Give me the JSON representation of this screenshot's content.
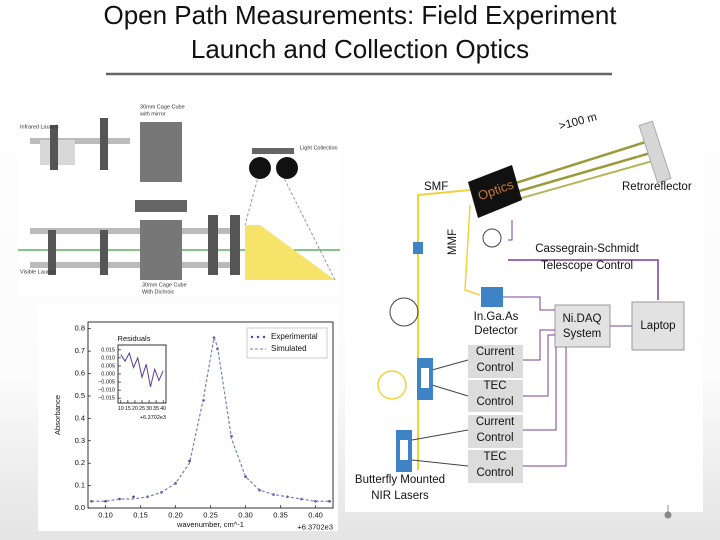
{
  "slide": {
    "title_lines": [
      "Open Path Measurements: Field Experiment",
      "Launch and Collection Optics"
    ]
  },
  "optics_drawing": {
    "labels": {
      "cage_mirror": [
        "30mm Cage Cube",
        "with mirror"
      ],
      "infrared_launch": "Infrared Launch",
      "light_collection": "Light Collection",
      "visible_launch": "Visible Launch",
      "cage_dichroic": [
        "30mm Cage Cube",
        "With Dichroic"
      ]
    }
  },
  "setup_diagram": {
    "distance": ">100 m",
    "optics": "Optics",
    "retroreflector": "Retroreflector",
    "smf": "SMF",
    "mmf": "MMF",
    "telescope_control": [
      "Cassegrain-Schmidt",
      "Telescope Control"
    ],
    "detector": [
      "In.Ga.As",
      "Detector"
    ],
    "daq": [
      "Ni.DAQ",
      "System"
    ],
    "laptop": "Laptop",
    "controls": [
      [
        "Current",
        "Control"
      ],
      [
        "TEC",
        "Control"
      ],
      [
        "Current",
        "Control"
      ],
      [
        "TEC",
        "Control"
      ]
    ],
    "lasers": [
      "Butterfly Mounted",
      "NIR Lasers"
    ]
  },
  "chart_data": [
    {
      "type": "line",
      "ylabel": "Absorbance",
      "xlabel": "wavenumber, cm^-1",
      "x_offset_label": "+6.3702e3",
      "x": [
        0.08,
        0.1,
        0.12,
        0.14,
        0.16,
        0.18,
        0.2,
        0.22,
        0.24,
        0.255,
        0.26,
        0.28,
        0.3,
        0.32,
        0.34,
        0.36,
        0.38,
        0.4,
        0.42
      ],
      "series": [
        {
          "name": "Experimental",
          "color": "#5b3a9e",
          "marker": "dot",
          "values": [
            0.03,
            0.03,
            0.04,
            0.05,
            0.05,
            0.07,
            0.11,
            0.21,
            0.48,
            0.76,
            0.71,
            0.32,
            0.14,
            0.08,
            0.06,
            0.05,
            0.04,
            0.03,
            0.03
          ]
        },
        {
          "name": "Simulated",
          "color": "#6f86b5",
          "linestyle": "dashed",
          "values": [
            0.03,
            0.03,
            0.04,
            0.04,
            0.05,
            0.07,
            0.11,
            0.2,
            0.49,
            0.76,
            0.72,
            0.31,
            0.14,
            0.08,
            0.06,
            0.05,
            0.04,
            0.03,
            0.03
          ]
        }
      ],
      "xlim": [
        0.075,
        0.425
      ],
      "ylim": [
        0,
        0.83
      ],
      "xticks": [
        {
          "value": 0.1,
          "label": "0.10"
        },
        0.15,
        {
          "value": 0.2,
          "label": "0.20"
        },
        0.25,
        {
          "value": 0.3,
          "label": "0.30"
        },
        0.35,
        {
          "value": 0.4,
          "label": "0.40"
        }
      ],
      "yticks": [
        {
          "value": 0,
          "label": "0.0"
        },
        0.1,
        0.2,
        0.3,
        0.4,
        0.5,
        0.6,
        0.7,
        0.8
      ],
      "legend": "upper right"
    },
    {
      "type": "line",
      "title": "Residuals",
      "x_offset_label": "+6.3702e3",
      "x": [
        10,
        13,
        16,
        19,
        22,
        25,
        28,
        31,
        34,
        37,
        40
      ],
      "series": [
        {
          "color": "#5b3a9e",
          "values": [
            0.012,
            0.008,
            0.013,
            0.004,
            0.01,
            -0.002,
            0.006,
            -0.008,
            0.003,
            -0.004,
            0.002
          ]
        }
      ],
      "xlim": [
        8,
        42
      ],
      "ylim": [
        -0.018,
        0.018
      ],
      "xticks": [
        10,
        15,
        20,
        25,
        30,
        35,
        40
      ],
      "yticks": [
        0.015,
        {
          "value": 0.01,
          "label": "0.010"
        },
        0.005,
        {
          "value": 0,
          "label": "0.000"
        },
        {
          "value": -0.005,
          "label": "−0.005"
        },
        {
          "value": -0.01,
          "label": "−0.010"
        },
        {
          "value": -0.015,
          "label": "−0.015"
        }
      ]
    }
  ]
}
